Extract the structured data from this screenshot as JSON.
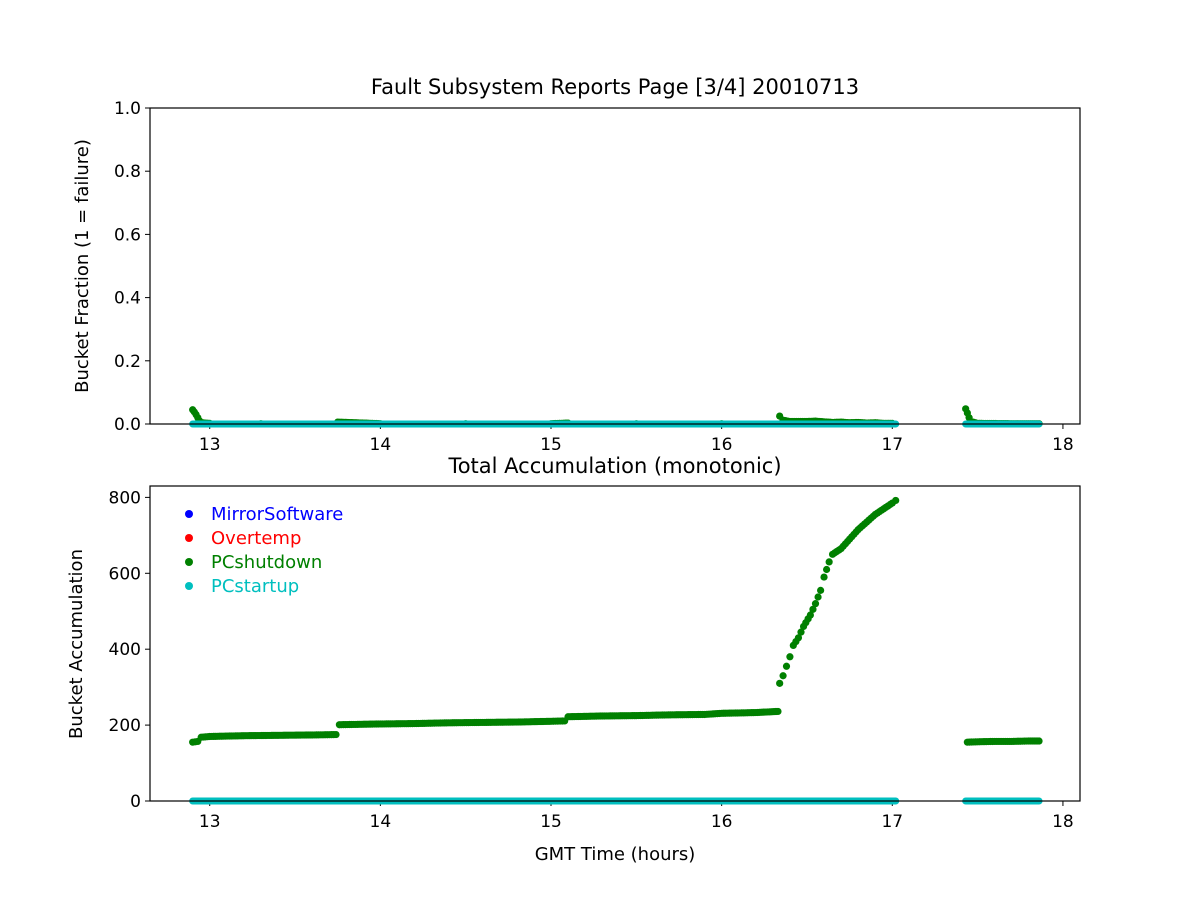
{
  "chart_data": [
    {
      "type": "scatter",
      "title": "Fault Subsystem Reports Page [3/4] 20010713",
      "xlabel": "",
      "ylabel": "Bucket Fraction (1 = failure)",
      "xlim": [
        12.65,
        18.1
      ],
      "ylim": [
        0.0,
        1.0
      ],
      "xticks": [
        "13",
        "14",
        "15",
        "16",
        "17",
        "18"
      ],
      "yticks": [
        "0.0",
        "0.2",
        "0.4",
        "0.6",
        "0.8",
        "1.0"
      ],
      "grid": false,
      "series": [
        {
          "name": "PCshutdown",
          "color": "#008000",
          "points": [
            [
              12.9,
              0.045
            ],
            [
              12.91,
              0.038
            ],
            [
              12.92,
              0.03
            ],
            [
              12.93,
              0.02
            ],
            [
              12.94,
              0.01
            ],
            [
              12.95,
              0.004
            ],
            [
              13.0,
              0.002
            ],
            [
              13.3,
              0.001
            ],
            [
              13.75,
              0.006
            ],
            [
              14.0,
              0.001
            ],
            [
              14.5,
              0.001
            ],
            [
              15.0,
              0.001
            ],
            [
              15.1,
              0.003
            ],
            [
              15.5,
              0.001
            ],
            [
              16.0,
              0.001
            ],
            [
              16.34,
              0.025
            ],
            [
              16.36,
              0.012
            ],
            [
              16.4,
              0.008
            ],
            [
              16.5,
              0.008
            ],
            [
              16.55,
              0.009
            ],
            [
              16.6,
              0.007
            ],
            [
              16.65,
              0.005
            ],
            [
              16.7,
              0.006
            ],
            [
              16.75,
              0.004
            ],
            [
              16.8,
              0.005
            ],
            [
              16.85,
              0.003
            ],
            [
              16.9,
              0.004
            ],
            [
              16.95,
              0.002
            ],
            [
              17.0,
              0.002
            ],
            [
              17.43,
              0.048
            ],
            [
              17.44,
              0.035
            ],
            [
              17.45,
              0.02
            ],
            [
              17.46,
              0.008
            ],
            [
              17.5,
              0.002
            ],
            [
              17.7,
              0.001
            ],
            [
              17.86,
              0.001
            ]
          ]
        },
        {
          "name": "PCstartup",
          "color": "#00bfbf",
          "segments": [
            [
              12.9,
              17.02,
              0.0
            ],
            [
              17.43,
              17.86,
              0.0
            ]
          ]
        }
      ]
    },
    {
      "type": "scatter",
      "title": "Total Accumulation (monotonic)",
      "xlabel": "GMT Time (hours)",
      "ylabel": "Bucket Accumulation",
      "xlim": [
        12.65,
        18.1
      ],
      "ylim": [
        0,
        830
      ],
      "xticks": [
        "13",
        "14",
        "15",
        "16",
        "17",
        "18"
      ],
      "yticks": [
        "0",
        "200",
        "400",
        "600",
        "800"
      ],
      "grid": false,
      "legend": {
        "position": "top-left",
        "entries": [
          {
            "label": "MirrorSoftware",
            "color": "#0000ff"
          },
          {
            "label": "Overtemp",
            "color": "#ff0000"
          },
          {
            "label": "PCshutdown",
            "color": "#008000"
          },
          {
            "label": "PCstartup",
            "color": "#00bfbf"
          }
        ]
      },
      "series": [
        {
          "name": "PCshutdown",
          "color": "#008000",
          "points": [
            [
              12.9,
              155
            ],
            [
              12.93,
              157
            ],
            [
              12.95,
              168
            ],
            [
              13.0,
              170
            ],
            [
              13.2,
              172
            ],
            [
              13.4,
              173
            ],
            [
              13.6,
              174
            ],
            [
              13.74,
              175
            ],
            [
              13.76,
              201
            ],
            [
              14.0,
              203
            ],
            [
              14.2,
              204
            ],
            [
              14.4,
              206
            ],
            [
              14.6,
              207
            ],
            [
              14.8,
              208
            ],
            [
              15.0,
              210
            ],
            [
              15.08,
              211
            ],
            [
              15.1,
              222
            ],
            [
              15.3,
              224
            ],
            [
              15.5,
              225
            ],
            [
              15.7,
              227
            ],
            [
              15.9,
              228
            ],
            [
              16.0,
              231
            ],
            [
              16.2,
              233
            ],
            [
              16.33,
              236
            ],
            [
              16.34,
              310
            ],
            [
              16.36,
              330
            ],
            [
              16.38,
              355
            ],
            [
              16.4,
              380
            ],
            [
              16.42,
              410
            ],
            [
              16.45,
              430
            ],
            [
              16.48,
              460
            ],
            [
              16.52,
              490
            ],
            [
              16.55,
              520
            ],
            [
              16.58,
              555
            ],
            [
              16.6,
              590
            ],
            [
              16.63,
              630
            ],
            [
              16.65,
              650
            ],
            [
              16.7,
              665
            ],
            [
              16.75,
              690
            ],
            [
              16.8,
              715
            ],
            [
              16.85,
              735
            ],
            [
              16.9,
              755
            ],
            [
              16.95,
              770
            ],
            [
              17.0,
              785
            ],
            [
              17.02,
              792
            ],
            [
              17.44,
              155
            ],
            [
              17.5,
              156
            ],
            [
              17.6,
              157
            ],
            [
              17.7,
              157
            ],
            [
              17.8,
              158
            ],
            [
              17.86,
              158
            ]
          ]
        },
        {
          "name": "PCstartup",
          "color": "#00bfbf",
          "segments": [
            [
              12.9,
              17.02,
              0.0
            ],
            [
              17.43,
              17.86,
              0.0
            ]
          ]
        }
      ]
    }
  ]
}
